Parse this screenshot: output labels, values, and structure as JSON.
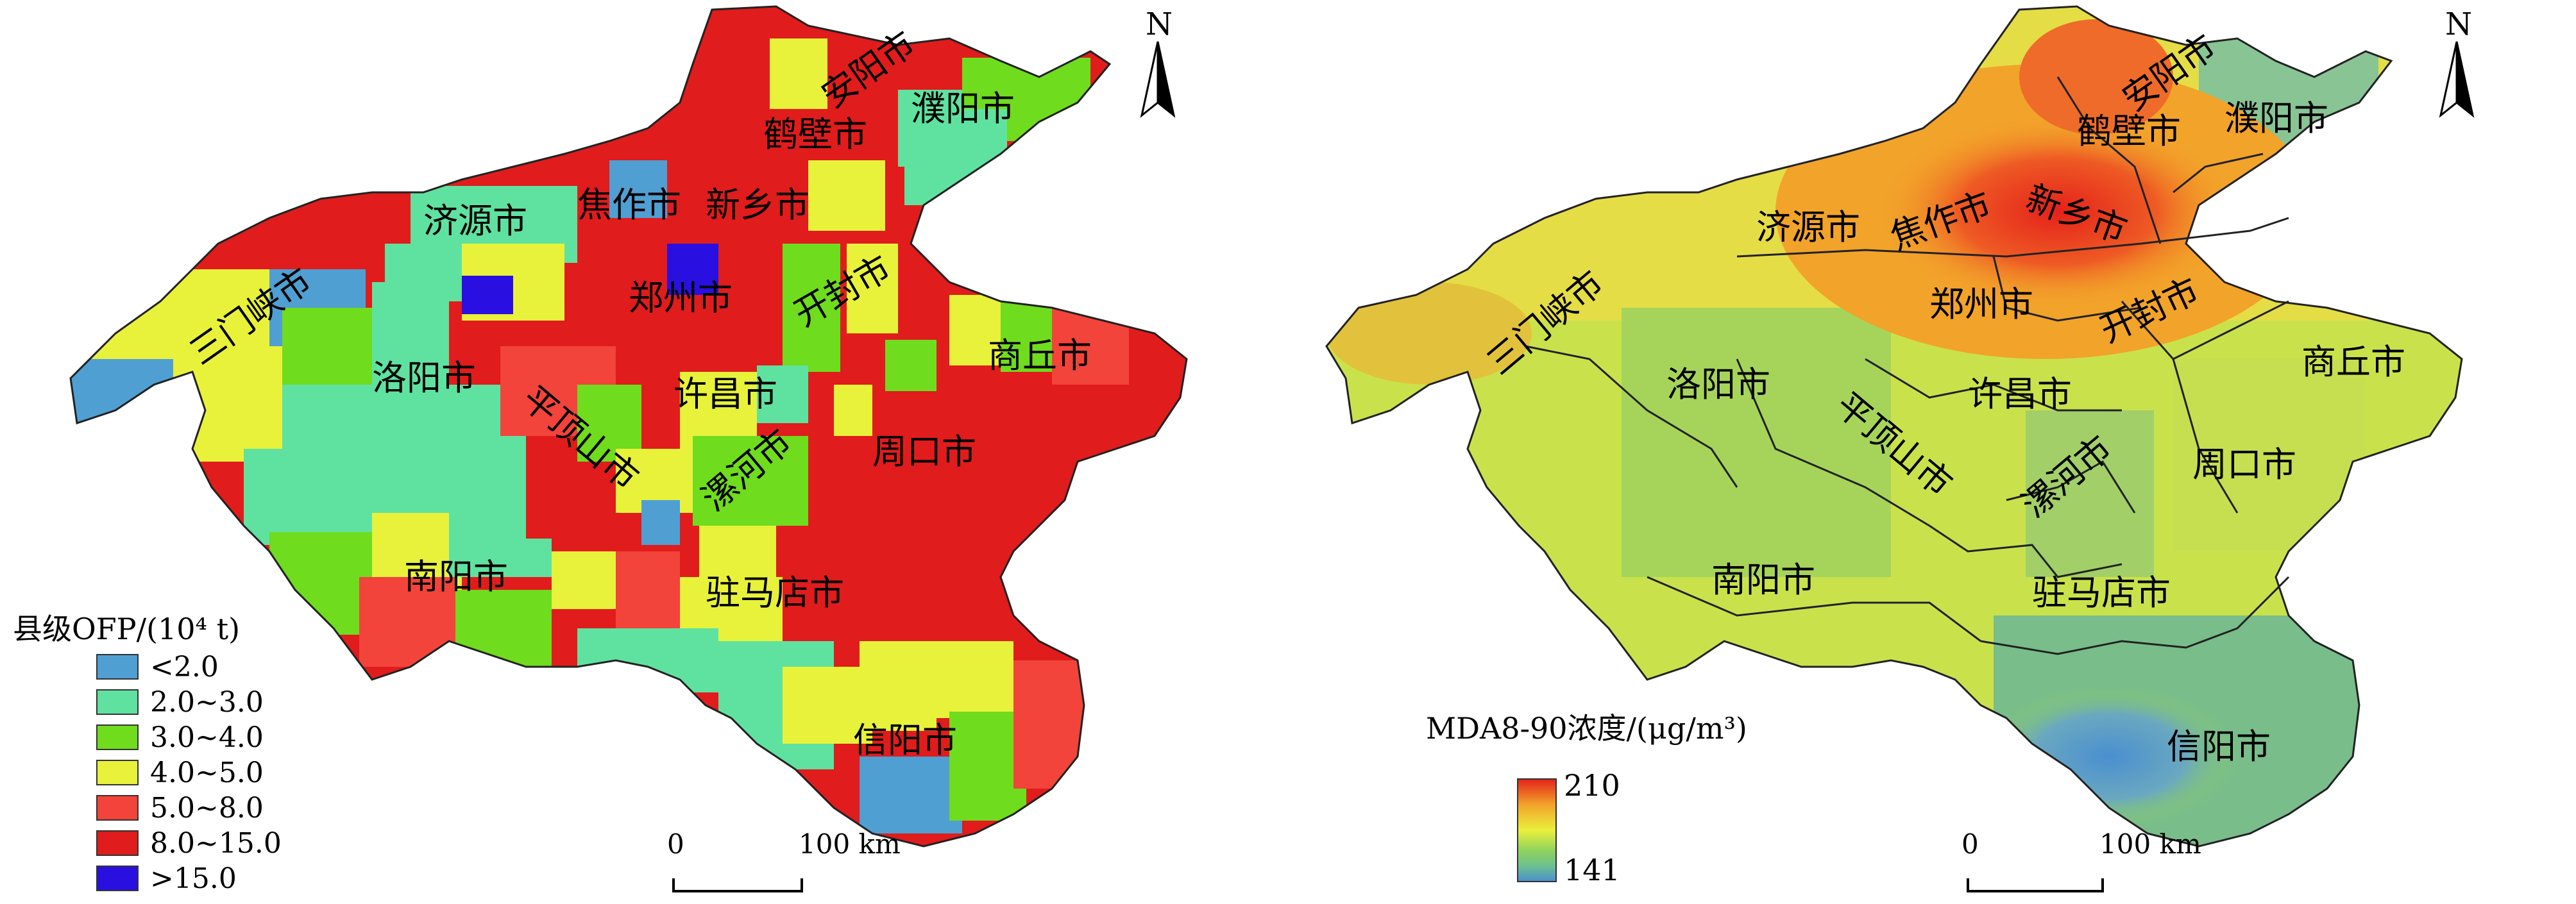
{
  "left_map": {
    "cities": [
      "安阳市",
      "濮阳市",
      "鹤壁市",
      "新乡市",
      "济源市",
      "焦作市",
      "郑州市",
      "开封市",
      "三门峡市",
      "洛阳市",
      "商丘市",
      "许昌市",
      "平顶山市",
      "漯河市",
      "周口市",
      "南阳市",
      "驻马店市",
      "信阳市"
    ],
    "legend": {
      "title": "县级OFP/(10⁴ t)",
      "items": [
        {
          "label": "<2.0",
          "color": "#4f9fd3"
        },
        {
          "label": "2.0~3.0",
          "color": "#5fe2a0"
        },
        {
          "label": "3.0~4.0",
          "color": "#6fdc1e"
        },
        {
          "label": "4.0~5.0",
          "color": "#e8f23a"
        },
        {
          "label": "5.0~8.0",
          "color": "#f2443a"
        },
        {
          "label": "8.0~15.0",
          "color": "#e01c1c"
        },
        {
          "label": ">15.0",
          "color": "#2a10e0"
        }
      ]
    },
    "scale": {
      "start": "0",
      "end": "100 km"
    },
    "north": "N"
  },
  "right_map": {
    "cities": [
      "安阳市",
      "鹤壁市",
      "濮阳市",
      "济源市",
      "焦作市",
      "新乡市",
      "郑州市",
      "开封市",
      "三门峡市",
      "洛阳市",
      "商丘市",
      "许昌市",
      "平顶山市",
      "漯河市",
      "周口市",
      "南阳市",
      "驻马店市",
      "信阳市"
    ],
    "legend": {
      "title": "MDA8-90浓度/(μg/m³)",
      "max": "210",
      "min": "141",
      "gradient": [
        "#e4221b",
        "#f2a32a",
        "#eaf03c",
        "#8fd25e",
        "#6cc08f",
        "#4a8fd0"
      ]
    },
    "scale": {
      "start": "0",
      "end": "100 km"
    },
    "north": "N"
  }
}
